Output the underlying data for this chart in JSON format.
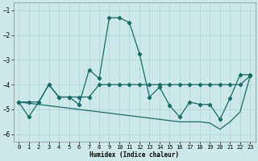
{
  "xlabel": "Humidex (Indice chaleur)",
  "xlim": [
    -0.5,
    23.5
  ],
  "ylim": [
    -6.3,
    -0.7
  ],
  "yticks": [
    -6,
    -5,
    -4,
    -3,
    -2,
    -1
  ],
  "xticks": [
    0,
    1,
    2,
    3,
    4,
    5,
    6,
    7,
    8,
    9,
    10,
    11,
    12,
    13,
    14,
    15,
    16,
    17,
    18,
    19,
    20,
    21,
    22,
    23
  ],
  "bg_color": "#cce8e8",
  "grid_color": "#a8d4d4",
  "line_color": "#1a6b6b",
  "series1_x": [
    0,
    1,
    2,
    3,
    4,
    5,
    6,
    7,
    8,
    9,
    10,
    11,
    12,
    13,
    14,
    15,
    16,
    17,
    18,
    19,
    20,
    21,
    22,
    23
  ],
  "series1_y": [
    -4.7,
    -5.3,
    -4.7,
    -4.0,
    -4.5,
    -4.5,
    -4.8,
    -3.4,
    -3.75,
    -1.3,
    -1.3,
    -1.5,
    -2.75,
    -4.5,
    -4.1,
    -4.85,
    -5.3,
    -4.7,
    -4.8,
    -4.8,
    -5.4,
    -4.55,
    -3.6,
    -3.6
  ],
  "series2_x": [
    0,
    1,
    2,
    3,
    4,
    5,
    6,
    7,
    8,
    9,
    10,
    11,
    12,
    13,
    14,
    15,
    16,
    17,
    18,
    19,
    20,
    21,
    22,
    23
  ],
  "series2_y": [
    -4.7,
    -4.7,
    -4.7,
    -4.0,
    -4.5,
    -4.5,
    -4.5,
    -4.5,
    -4.0,
    -4.0,
    -4.0,
    -4.0,
    -4.0,
    -4.0,
    -4.0,
    -4.0,
    -4.0,
    -4.0,
    -4.0,
    -4.0,
    -4.0,
    -4.0,
    -4.0,
    -3.65
  ],
  "series3_x": [
    0,
    1,
    2,
    3,
    4,
    5,
    6,
    7,
    8,
    9,
    10,
    11,
    12,
    13,
    14,
    15,
    16,
    17,
    18,
    19,
    20,
    21,
    22,
    23
  ],
  "series3_y": [
    -4.7,
    -4.75,
    -4.8,
    -4.85,
    -4.9,
    -4.95,
    -5.0,
    -5.05,
    -5.1,
    -5.15,
    -5.2,
    -5.25,
    -5.3,
    -5.35,
    -5.4,
    -5.45,
    -5.5,
    -5.5,
    -5.5,
    -5.55,
    -5.8,
    -5.5,
    -5.1,
    -3.65
  ]
}
